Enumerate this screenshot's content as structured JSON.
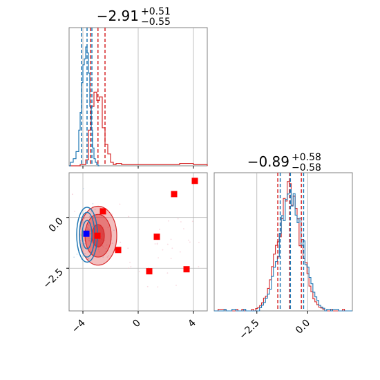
{
  "colors": {
    "red": "#d62728",
    "blue": "#1f77b4",
    "marker_red": "#ff0000",
    "marker_blue": "#0000ff",
    "grid": "#b0b0b0"
  },
  "chart_data": [
    {
      "type": "histogram",
      "panel": "top-left marginal",
      "title": {
        "value": "−2.91",
        "sup": "+0.51",
        "sub": "−0.55"
      },
      "xlim": [
        -5,
        5
      ],
      "xticks": [
        -4,
        0,
        4
      ],
      "quantiles_red": [
        -3.46,
        -2.91,
        -2.4
      ],
      "quantiles_blue": [
        -4.1,
        -3.7,
        -3.35
      ],
      "series": [
        {
          "color": "red",
          "bins": [
            -5,
            -4.6,
            -4.2,
            -3.8,
            -3.6,
            -3.4,
            -3.2,
            -3.0,
            -2.8,
            -2.6,
            -2.4,
            -2.2,
            -2.0,
            -1.8,
            -1.6,
            -1.2,
            -0.8,
            0,
            1,
            2,
            3,
            4,
            5
          ],
          "counts": [
            0,
            0,
            0.01,
            0.05,
            0.3,
            0.5,
            0.62,
            0.55,
            0.58,
            0.32,
            0.18,
            0.1,
            0.03,
            0.01,
            0.02,
            0.01,
            0.01,
            0.01,
            0.01,
            0.01,
            0.02,
            0.01
          ]
        },
        {
          "color": "blue",
          "bins": [
            -5,
            -4.9,
            -4.7,
            -4.5,
            -4.3,
            -4.2,
            -4.1,
            -4.0,
            -3.9,
            -3.8,
            -3.7,
            -3.6,
            -3.5,
            -3.4,
            -3.3,
            -3.2,
            -3.1,
            -3.0,
            -2.9,
            -2.8
          ],
          "counts": [
            0,
            0.03,
            0.06,
            0.12,
            0.3,
            0.45,
            0.7,
            0.85,
            0.9,
            1.0,
            0.95,
            0.78,
            0.5,
            0.3,
            0.15,
            0.06,
            0.03,
            0.01,
            0
          ]
        }
      ]
    },
    {
      "type": "scatter",
      "panel": "bottom-left joint",
      "xlim": [
        -5,
        5
      ],
      "ylim": [
        -4.6,
        2.2
      ],
      "xticks": [
        -4,
        0,
        4
      ],
      "yticks": [
        -2.5,
        0.0
      ],
      "xtick_labels": [
        "−4",
        "0",
        "4"
      ],
      "ytick_labels": [
        "−2.5",
        "0.0"
      ],
      "points_red": [
        {
          "x": 4.1,
          "y": 1.8
        },
        {
          "x": 2.6,
          "y": 1.15
        },
        {
          "x": -2.55,
          "y": 0.3
        },
        {
          "x": 1.35,
          "y": -0.95
        },
        {
          "x": -2.95,
          "y": -0.9
        },
        {
          "x": -1.45,
          "y": -1.6
        },
        {
          "x": 0.8,
          "y": -2.65
        },
        {
          "x": 3.5,
          "y": -2.55
        }
      ],
      "points_blue": [
        {
          "x": -3.75,
          "y": -0.8
        }
      ],
      "contour_red_center": {
        "x": -2.9,
        "y": -0.9
      },
      "contour_blue_center": {
        "x": -3.7,
        "y": -0.85
      }
    },
    {
      "type": "histogram",
      "panel": "bottom-right marginal",
      "title": {
        "value": "−0.89",
        "sup": "+0.58",
        "sub": "−0.58"
      },
      "xlim": [
        -4.6,
        2.2
      ],
      "xticks": [
        -2.5,
        0.0
      ],
      "xtick_labels": [
        "−2.5",
        "0.0"
      ],
      "quantiles_red": [
        -1.47,
        -0.89,
        -0.31
      ],
      "quantiles_blue": [
        -1.35,
        -0.85,
        -0.2
      ],
      "series": [
        {
          "color": "red",
          "center": -0.89,
          "sigma": 0.58
        },
        {
          "color": "blue",
          "center": -0.8,
          "sigma": 0.58
        }
      ]
    }
  ]
}
